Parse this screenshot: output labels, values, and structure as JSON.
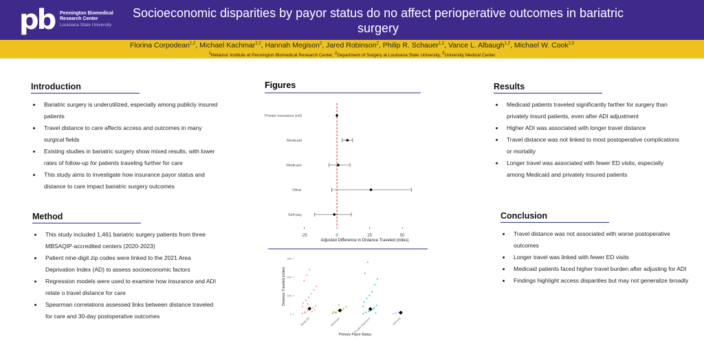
{
  "header": {
    "logo": "pb",
    "org_name": "Pennington Biomedical Research Center",
    "org_sub": "Louisiana State University",
    "title": "Socioeconomic disparities by payor status do no affect perioperative outcomes in bariatric surgery"
  },
  "authors": [
    {
      "name": "Florina Corpodean",
      "sup": "1,2"
    },
    {
      "name": "Michael Kachmar",
      "sup": "1,2"
    },
    {
      "name": "Hannah Megison",
      "sup": "2"
    },
    {
      "name": "Jared Robinson",
      "sup": "2"
    },
    {
      "name": "Philip R. Schauer",
      "sup": "1,2"
    },
    {
      "name": "Vance L. Albaugh",
      "sup": "1,2"
    },
    {
      "name": "Michael W. Cook",
      "sup": "2,3"
    }
  ],
  "affiliations": [
    {
      "sup": "1",
      "text": "Metamor Institute at Pennington Biomedical Research Center"
    },
    {
      "sup": "2",
      "text": "Department of Surgery at Louisiana State University"
    },
    {
      "sup": "3",
      "text": "University Medical Center"
    }
  ],
  "sections": {
    "introduction": {
      "title": "Introduction",
      "bullets": [
        "Bariatric surgery is underutilized, especially among publicly insured patients",
        "Travel distance to care affects access and outcomes in many surgical fields",
        "Existing studies in bariatric surgery show mixed results, with lower rates of follow-up for patients traveling further for care",
        "This study aims to investigate how insurance payor status and distance to care impact bariatric surgery outcomes"
      ]
    },
    "method": {
      "title": "Method",
      "bullets": [
        "This study included 1,461 bariatric surgery patients from three MBSAQIP-accredited centers (2020-2023)",
        "Patient nine-digit zip codes were linked to the 2021 Area Deprivation Index (AD) to assess socioeconomic factors",
        "Regression models were used to examine how insurance and ADI relate o travel distance for care",
        "Spearman correlations assessed links between distance traveled for care and 30-day postoperative outcomes"
      ]
    },
    "results": {
      "title": "Results",
      "bullets": [
        "Medicaid patients traveled significantly farther for surgery than privately insurd patients, even after ADI adjustment",
        "Higher ADI was associated with longer travel distance",
        "Travel distance was not linked to most postoperative complications or mortality",
        "Longer travel was associated with fewer ED visits, especially among Medicaid and privately insured patients"
      ]
    },
    "conclusion": {
      "title": "Conclusion",
      "bullets": [
        "Travel distance was not associated with worse postoperative outcomes",
        "Longer travel was linked with fewer ED visits",
        "Medicaid patients faced higher travel burden after adjusting for ADI",
        "Findings highlight access disparities but may not generalize broadly"
      ]
    }
  },
  "figures": {
    "title": "Figures",
    "forest_plot": {
      "type": "forest",
      "categories": [
        "Private insurance (ref)",
        "Medicaid",
        "Medicare",
        "Other",
        "Self-pay"
      ],
      "values": [
        0,
        8,
        1,
        26,
        -2
      ],
      "ci_low": [
        0,
        4,
        -6,
        -4,
        -17
      ],
      "ci_high": [
        0,
        12,
        10,
        57,
        11
      ],
      "reference": 0,
      "xlim": [
        -30,
        62
      ],
      "xticks": [
        -25,
        0,
        25,
        50
      ],
      "xlabel": "Adjusted Difference in Distance Traveled (miles)",
      "color": "#000000",
      "reference_color": "#e03030"
    },
    "strip_plot": {
      "type": "strip",
      "categories": [
        "Medicaid",
        "Medicare",
        "Private Insurance",
        "Self-pay"
      ],
      "colors": [
        "#f8766d",
        "#7cae00",
        "#00bfc4",
        "#c77cff"
      ],
      "points": [
        [
          5,
          12,
          20,
          28,
          35,
          45,
          60,
          75,
          90,
          110,
          130,
          150,
          180,
          210,
          240,
          15,
          22,
          40,
          8,
          55
        ],
        [
          4,
          10,
          18,
          25,
          30,
          40,
          12,
          8,
          50,
          22
        ],
        [
          3,
          9,
          15,
          24,
          33,
          48,
          65,
          85,
          100,
          120,
          160,
          190,
          220,
          280,
          18,
          27,
          6,
          42
        ],
        [
          2,
          6,
          10,
          14
        ]
      ],
      "means": [
        30,
        20,
        28,
        8
      ],
      "ylim": [
        0,
        300
      ],
      "yticks": [
        0,
        100,
        200,
        300
      ],
      "xlabel": "Primary Payor Status",
      "ylabel": "Distance Traveled (miles)"
    }
  }
}
